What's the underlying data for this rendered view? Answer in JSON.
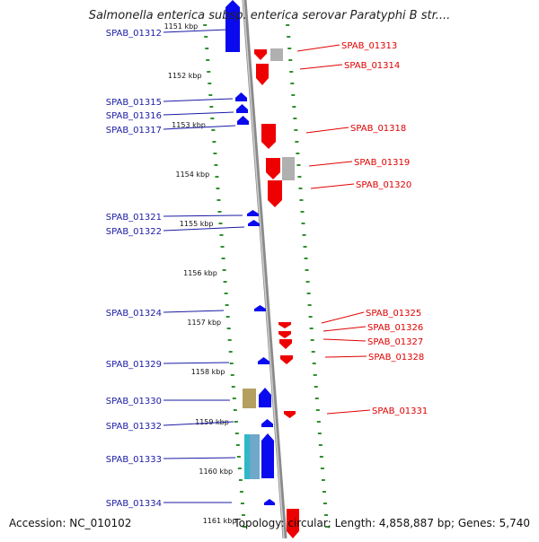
{
  "title": "Salmonella enterica subsp. enterica serovar Paratyphi B str....",
  "accession": "Accession: NC_010102",
  "summary": "Topology: circular; Length: 4,858,887 bp; Genes: 5,740",
  "colors": {
    "forward_gene": "#0a0aee",
    "reverse_gene": "#ee0000",
    "forward_label": "#1a1aa6",
    "reverse_label": "#e00000",
    "dna_strand": "#8a8a8a",
    "tick_marks": "#2f8f2f",
    "pseudo_gray": "#b0b0b0",
    "olive": "#b3a060",
    "teal": "#30b8c8"
  },
  "ruler": [
    "1151 kbp",
    "1152 kbp",
    "1153 kbp",
    "1154 kbp",
    "1155 kbp",
    "1156 kbp",
    "1157 kbp",
    "1158 kbp",
    "1159 kbp",
    "1160 kbp",
    "1161 kbp"
  ],
  "genes_left": [
    {
      "id": "SPAB_01312"
    },
    {
      "id": "SPAB_01315"
    },
    {
      "id": "SPAB_01316"
    },
    {
      "id": "SPAB_01317"
    },
    {
      "id": "SPAB_01321"
    },
    {
      "id": "SPAB_01322"
    },
    {
      "id": "SPAB_01324"
    },
    {
      "id": "SPAB_01329"
    },
    {
      "id": "SPAB_01330"
    },
    {
      "id": "SPAB_01332"
    },
    {
      "id": "SPAB_01333"
    },
    {
      "id": "SPAB_01334"
    }
  ],
  "genes_right": [
    {
      "id": "SPAB_01313"
    },
    {
      "id": "SPAB_01314"
    },
    {
      "id": "SPAB_01318"
    },
    {
      "id": "SPAB_01319"
    },
    {
      "id": "SPAB_01320"
    },
    {
      "id": "SPAB_01325"
    },
    {
      "id": "SPAB_01326"
    },
    {
      "id": "SPAB_01327"
    },
    {
      "id": "SPAB_01328"
    },
    {
      "id": "SPAB_01331"
    }
  ]
}
